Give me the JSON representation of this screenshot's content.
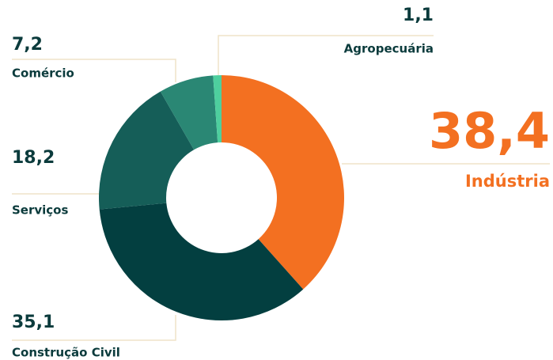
{
  "chart_data": {
    "type": "donut",
    "categories": [
      "Indústria",
      "Construção Civil",
      "Serviços",
      "Comércio",
      "Agropecuária"
    ],
    "values": [
      38.4,
      35.1,
      18.2,
      7.2,
      1.1
    ],
    "value_labels": [
      "38,4",
      "35,1",
      "18,2",
      "7,2",
      "1,1"
    ],
    "colors": [
      "#f37021",
      "#033f40",
      "#155e58",
      "#2a8774",
      "#4ecf9e"
    ]
  }
}
